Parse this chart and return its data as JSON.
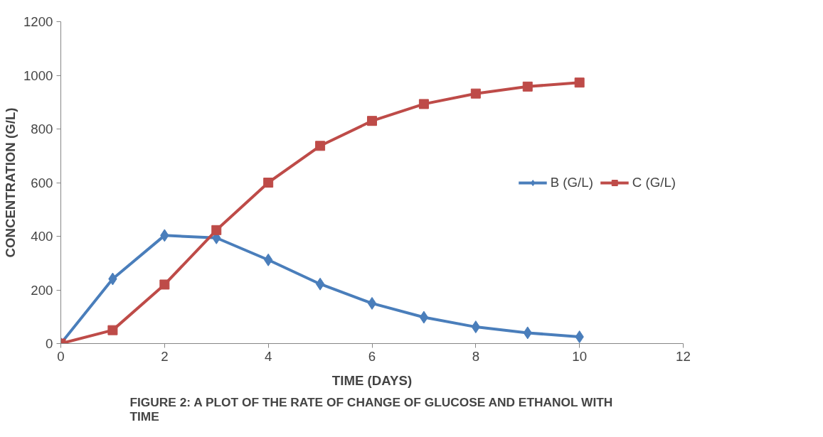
{
  "chart_data": {
    "type": "line",
    "title": "FIGURE 2: A PLOT OF THE RATE OF CHANGE OF GLUCOSE AND ETHANOL WITH TIME",
    "xlabel": "TIME (DAYS)",
    "ylabel": "CONCENTRATION (G/L)",
    "x": [
      0,
      1,
      2,
      3,
      4,
      5,
      6,
      7,
      8,
      9,
      10
    ],
    "series": [
      {
        "name": "B (G/L)",
        "color": "#4a7ebb",
        "marker": "diamond",
        "values": [
          0,
          241,
          403,
          394,
          312,
          222,
          150,
          98,
          62,
          40,
          25
        ]
      },
      {
        "name": "C (G/L)",
        "color": "#be4b48",
        "marker": "square",
        "values": [
          0,
          50,
          220,
          423,
          600,
          737,
          830,
          893,
          932,
          958,
          973
        ]
      }
    ],
    "xlim": [
      0,
      12
    ],
    "xticks": [
      0,
      2,
      4,
      6,
      8,
      10,
      12
    ],
    "ylim": [
      0,
      1200
    ],
    "yticks": [
      0,
      200,
      400,
      600,
      800,
      1000,
      1200
    ],
    "grid": false,
    "legend": "right",
    "line_style": "solid"
  }
}
